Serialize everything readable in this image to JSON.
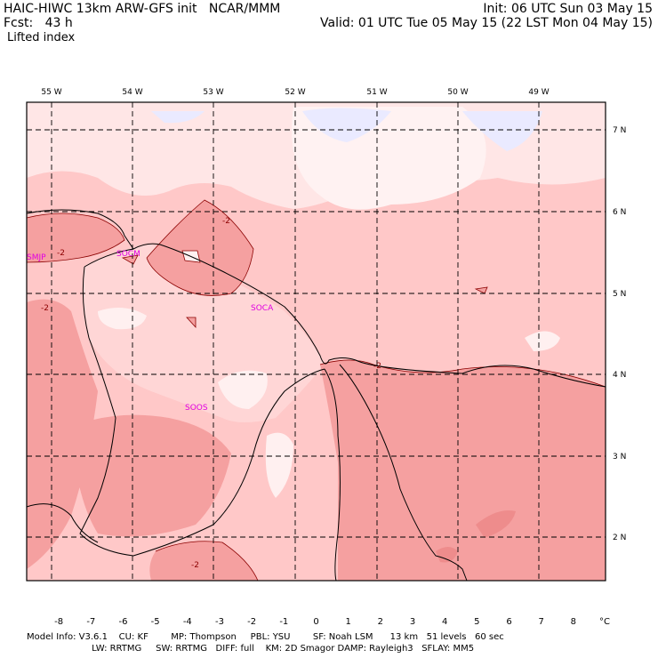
{
  "header": {
    "line1_left": "HAIC-HIWC 13km ARW-GFS init   NCAR/MMM",
    "line1_right": "Init: 06 UTC Sun 03 May 15",
    "line2_left": "Fcst:   43 h",
    "line2_right": "Valid: 01 UTC Tue 05 May 15 (22 LST Mon 04 May 15)",
    "field_name": "Lifted index"
  },
  "map": {
    "lon_labels": [
      "55 W",
      "54 W",
      "53 W",
      "52 W",
      "51 W",
      "50 W",
      "49 W"
    ],
    "lat_labels": [
      "7 N",
      "6 N",
      "5 N",
      "4 N",
      "3 N",
      "2 N"
    ],
    "stations": [
      "SMJP",
      "SOCM",
      "SOCA",
      "SOOS"
    ],
    "contour_label": "-2",
    "colors": {
      "background_light": "#ffe8e8",
      "fill_mid": "#ffc8c8",
      "fill_dark": "#ffaaaa",
      "fill_darker": "#f59a9a",
      "fill_negative_light": "#e8e8ff",
      "coastline": "#000000",
      "contour": "#8b0000",
      "station": "#e000e0"
    }
  },
  "colorbar": {
    "labels": [
      "-8",
      "-7",
      "-6",
      "-5",
      "-4",
      "-3",
      "-2",
      "-1",
      "0",
      "1",
      "2",
      "3",
      "4",
      "5",
      "6",
      "7",
      "8"
    ],
    "unit": "°C",
    "colors": [
      "#ff0000",
      "#ff1f1f",
      "#ff3a3a",
      "#ff5555",
      "#ff6f6f",
      "#ff8a8a",
      "#ffa5a5",
      "#ffc0c0",
      "#ffdada",
      "#fff5f5",
      "#f5f5ff",
      "#dadaff",
      "#c0c0ff",
      "#a5a5ff",
      "#8a8aff",
      "#6f6fff",
      "#3a3aff",
      "#0000ff"
    ]
  },
  "footer": {
    "line1": "Model Info: V3.6.1    CU: KF        MP: Thompson     PBL: YSU        SF: Noah LSM      13 km   51 levels   60 sec",
    "line2": "                       LW: RRTMG     SW: RRTMG   DIFF: full    KM: 2D Smagor DAMP: Rayleigh3   SFLAY: MM5"
  }
}
